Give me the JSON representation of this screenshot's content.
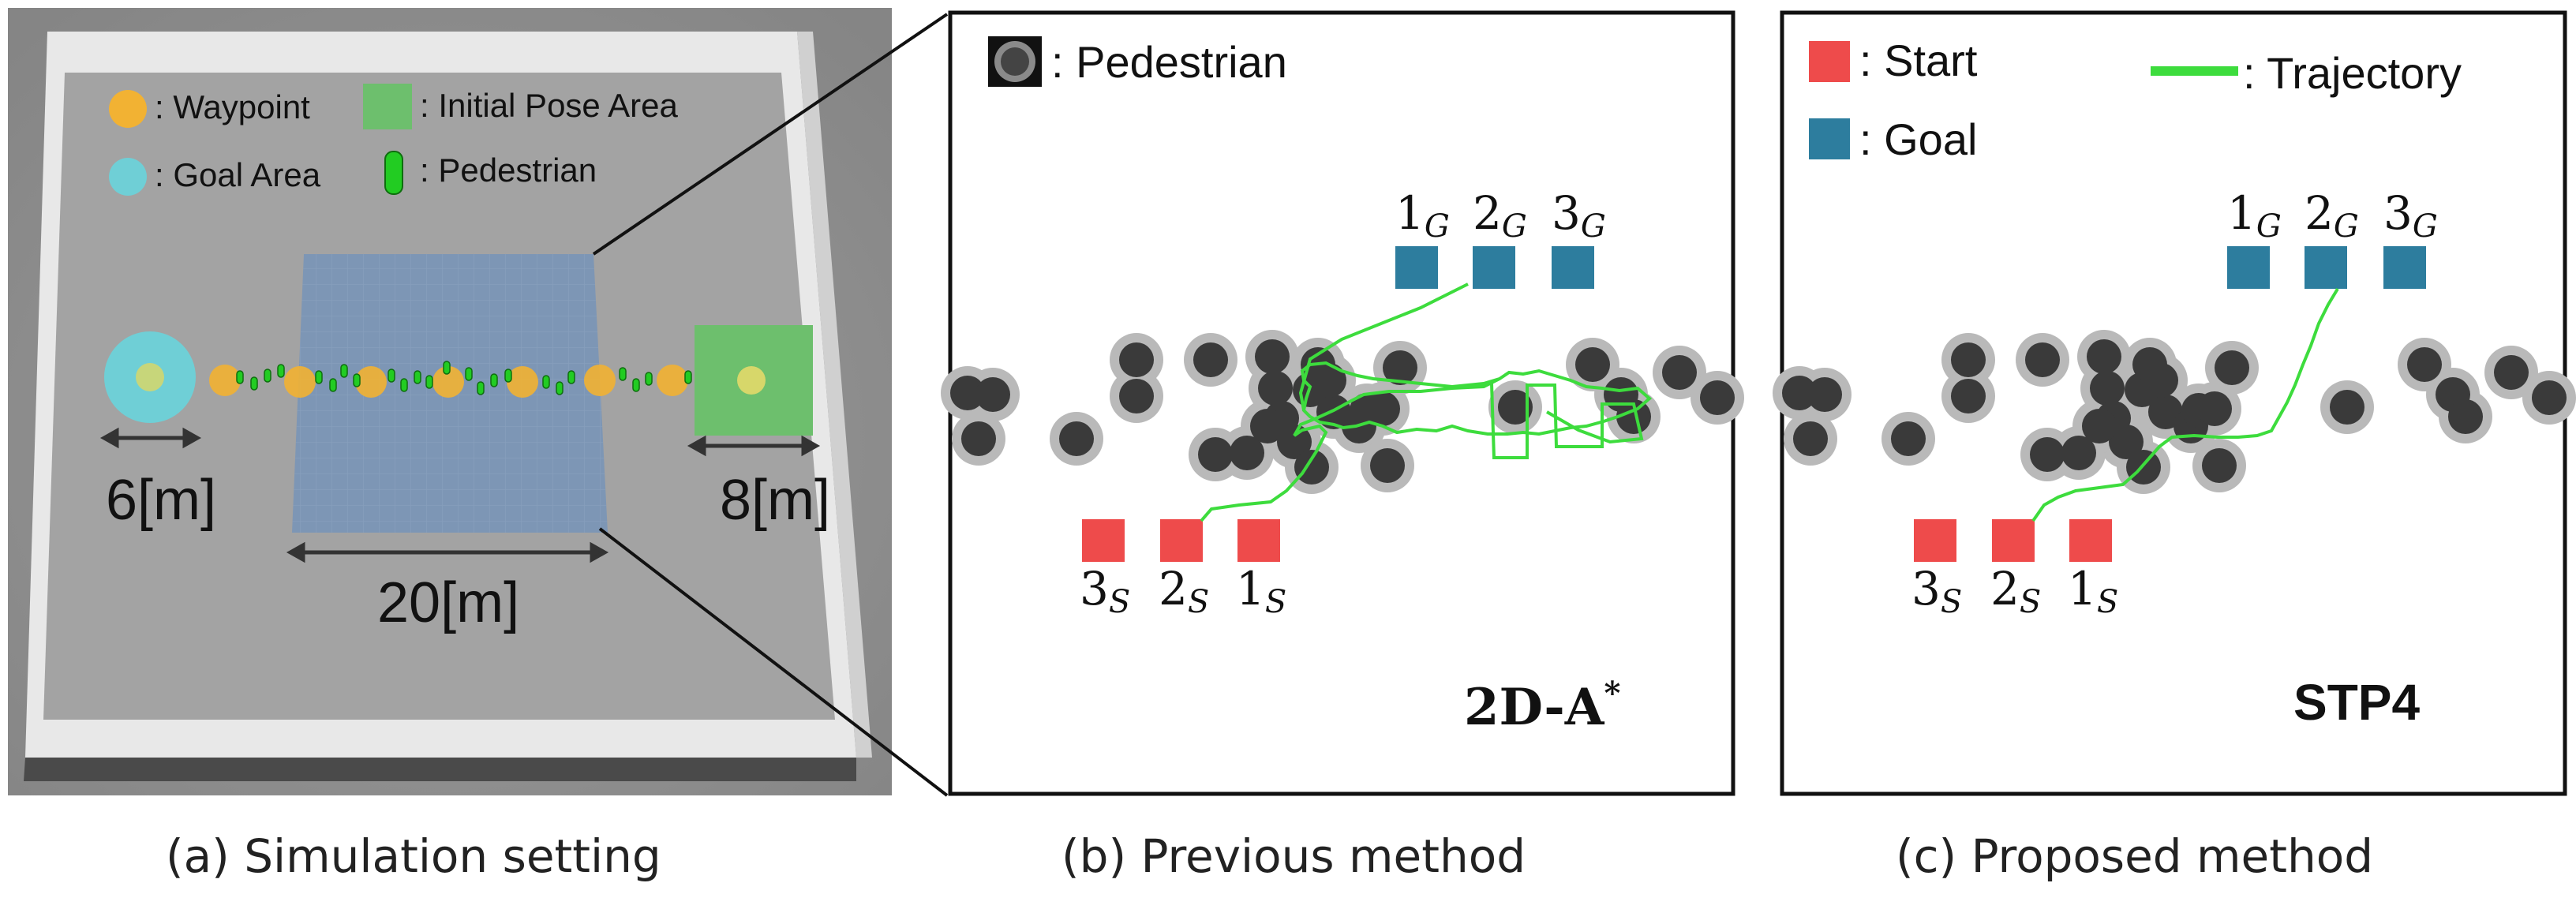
{
  "panel_a": {
    "legend": {
      "waypoint": ": Waypoint",
      "initial_pose_area": ": Initial Pose Area",
      "goal_area": ": Goal Area",
      "pedestrian": ": Pedestrian"
    },
    "dim_left": "6[m]",
    "dim_center": "20[m]",
    "dim_right": "8[m]",
    "caption": "(a) Simulation setting"
  },
  "panel_b": {
    "legend_pedestrian": ": Pedestrian",
    "method_label_main": "2D-A",
    "method_label_sup": "*",
    "caption": "(b) Previous method",
    "start_labels": [
      {
        "n": "3",
        "s": "S"
      },
      {
        "n": "2",
        "s": "S"
      },
      {
        "n": "1",
        "s": "S"
      }
    ],
    "goal_labels": [
      {
        "n": "1",
        "s": "G"
      },
      {
        "n": "2",
        "s": "G"
      },
      {
        "n": "3",
        "s": "G"
      }
    ]
  },
  "panel_c": {
    "legend_start": ": Start",
    "legend_goal": ": Goal",
    "legend_trajectory": ": Trajectory",
    "method_label": "STP4",
    "caption": "(c) Proposed method",
    "start_labels": [
      {
        "n": "3",
        "s": "S"
      },
      {
        "n": "2",
        "s": "S"
      },
      {
        "n": "1",
        "s": "S"
      }
    ],
    "goal_labels": [
      {
        "n": "1",
        "s": "G"
      },
      {
        "n": "2",
        "s": "G"
      },
      {
        "n": "3",
        "s": "G"
      }
    ]
  },
  "colors": {
    "start": "#ee4b4b",
    "goal": "#2d7d9e",
    "trajectory": "#3ddc3d",
    "pedestrian": "#3a3a3a",
    "pedestrian_halo": "#b9b9b9",
    "waypoint": "#f2b233",
    "goal_area": "#6fcfd6",
    "initial_pose_area": "#6dbf6d"
  }
}
